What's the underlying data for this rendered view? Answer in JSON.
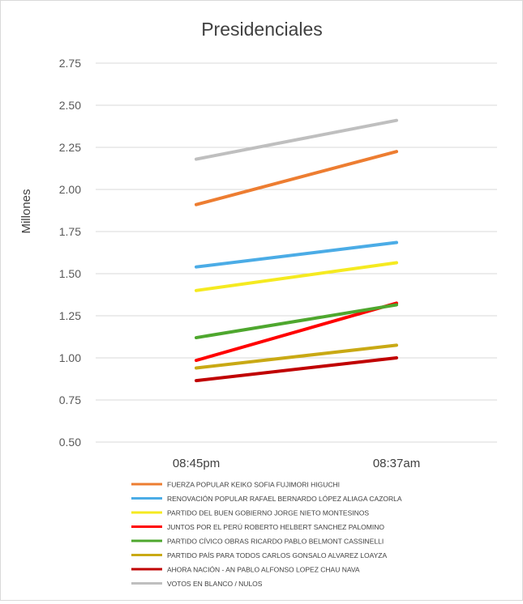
{
  "chart_data": {
    "type": "line",
    "title": "Presidenciales",
    "xlabel": "",
    "ylabel": "Millones",
    "ylim": [
      0.5,
      2.75
    ],
    "y_ticks": [
      "0.50",
      "0.75",
      "1.00",
      "1.25",
      "1.50",
      "1.75",
      "2.00",
      "2.25",
      "2.50",
      "2.75"
    ],
    "categories": [
      "08:45pm",
      "08:37am"
    ],
    "grid": true,
    "legend_position": "bottom",
    "series": [
      {
        "name": "FUERZA POPULAR KEIKO SOFIA FUJIMORI HIGUCHI",
        "color": "#ED7D31",
        "values": [
          1.91,
          2.225
        ]
      },
      {
        "name": "RENOVACIÓN POPULAR RAFAEL BERNARDO LÓPEZ ALIAGA CAZORLA",
        "color": "#4BACE6",
        "values": [
          1.54,
          1.685
        ]
      },
      {
        "name": "PARTIDO DEL BUEN GOBIERNO JORGE NIETO MONTESINOS",
        "color": "#F5EA20",
        "values": [
          1.4,
          1.565
        ]
      },
      {
        "name": "JUNTOS POR EL PERÚ ROBERTO HELBERT SANCHEZ PALOMINO",
        "color": "#FF0000",
        "values": [
          0.985,
          1.325
        ]
      },
      {
        "name": "PARTIDO CÍVICO OBRAS RICARDO PABLO BELMONT CASSINELLI",
        "color": "#4EA72E",
        "values": [
          1.12,
          1.315
        ]
      },
      {
        "name": "PARTIDO PAÍS PARA TODOS CARLOS GONSALO ALVAREZ LOAYZA",
        "color": "#C9A914",
        "values": [
          0.94,
          1.075
        ]
      },
      {
        "name": "AHORA NACIÓN - AN PABLO ALFONSO LOPEZ CHAU NAVA",
        "color": "#C00000",
        "values": [
          0.865,
          1.0
        ]
      },
      {
        "name": "VOTOS EN BLANCO / NULOS",
        "color": "#BFBFBF",
        "values": [
          2.18,
          2.41
        ]
      }
    ]
  }
}
